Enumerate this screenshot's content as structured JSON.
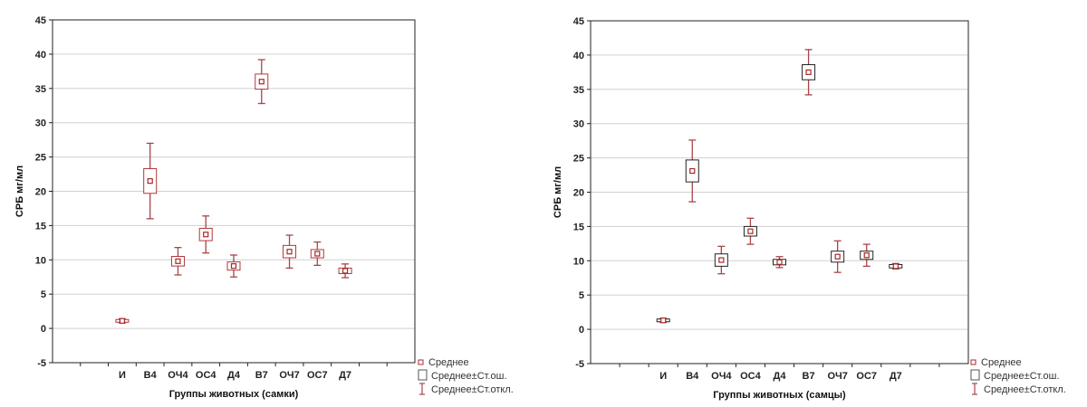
{
  "chart_data": [
    {
      "type": "box",
      "xlabel": "Группы животных (самки)",
      "ylabel": "СРБ мг/мл",
      "ylim": [
        -5,
        45
      ],
      "yticks": [
        -5,
        0,
        5,
        10,
        15,
        20,
        25,
        30,
        35,
        40,
        45
      ],
      "grid": true,
      "legend_position": "bottom-right",
      "categories": [
        "И",
        "В4",
        "ОЧ4",
        "ОС4",
        "Д4",
        "В7",
        "ОЧ7",
        "ОС7",
        "Д7"
      ],
      "mean": [
        1.1,
        21.5,
        9.8,
        13.7,
        9.1,
        36.0,
        11.2,
        10.9,
        8.4
      ],
      "se": [
        0.2,
        1.8,
        0.7,
        0.9,
        0.6,
        1.1,
        0.9,
        0.6,
        0.4
      ],
      "sd": [
        0.3,
        5.5,
        2.0,
        2.7,
        1.6,
        3.2,
        2.4,
        1.7,
        1.0
      ],
      "legend": [
        "Среднее",
        "Среднее±Ст.ош.",
        "Среднее±Ст.откл."
      ]
    },
    {
      "type": "box",
      "xlabel": "Группы животных (самцы)",
      "ylabel": "СРБ мг/мл",
      "ylim": [
        -5,
        45
      ],
      "yticks": [
        -5,
        0,
        5,
        10,
        15,
        20,
        25,
        30,
        35,
        40,
        45
      ],
      "grid": true,
      "legend_position": "bottom-right",
      "categories": [
        "И",
        "В4",
        "ОЧ4",
        "ОС4",
        "Д4",
        "В7",
        "ОЧ7",
        "ОС7",
        "Д7"
      ],
      "mean": [
        1.3,
        23.1,
        10.1,
        14.3,
        9.8,
        37.5,
        10.6,
        10.8,
        9.2
      ],
      "se": [
        0.2,
        1.6,
        0.9,
        0.7,
        0.4,
        1.1,
        0.8,
        0.6,
        0.25
      ],
      "sd": [
        0.3,
        4.5,
        2.0,
        1.9,
        0.8,
        3.3,
        2.3,
        1.6,
        0.4
      ],
      "legend": [
        "Среднее",
        "Среднее±Ст.ош.",
        "Среднее±Ст.откл."
      ]
    }
  ],
  "colors": {
    "whisker": "#a8454b",
    "box_left": "#b03838",
    "box_right": "#222222",
    "mean_marker": "#a82828",
    "grid": "#d0d0d0",
    "axis": "#222222",
    "legend_box": "#555555"
  }
}
